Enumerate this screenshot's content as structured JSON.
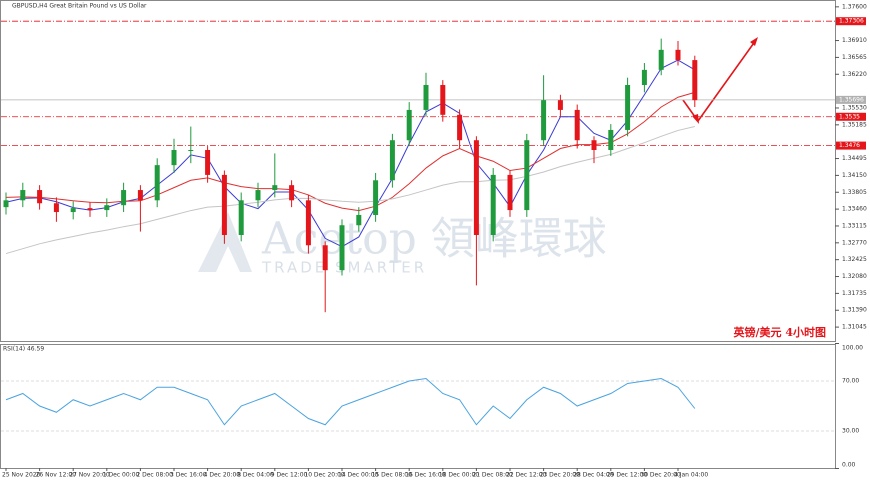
{
  "chart_data": [
    {
      "type": "candlestick",
      "title": "GBPUSD,H4  Great Britain Pound vs US Dollar",
      "annotations": [
        "英镑/美元  4小时图",
        "Acetop 領峰環球",
        "TRADE SMARTER"
      ],
      "categories": [
        "25 Nov 2020",
        null,
        "26 Nov 12:00",
        null,
        "27 Nov 20:00",
        null,
        "1 Dec 00:00",
        null,
        "2 Dec 08:00",
        null,
        "3 Dec 16:00",
        null,
        "4 Dec 20:00",
        null,
        "8 Dec 04:00",
        null,
        "9 Dec 12:00",
        null,
        "10 Dec 20:00",
        null,
        "14 Dec 00:00",
        null,
        "15 Dec 08:00",
        null,
        "16 Dec 16:00",
        null,
        "18 Dec 00:00",
        null,
        "21 Dec 08:00",
        null,
        "22 Dec 12:00",
        null,
        "23 Dec 20:00",
        null,
        "28 Dec 04:00",
        null,
        "29 Dec 12:00",
        null,
        "30 Dec 20:00",
        null,
        "4 Jan 04:00",
        null
      ],
      "open": [
        1.335,
        1.3364,
        1.3385,
        1.3358,
        1.334,
        1.3348,
        1.3344,
        1.3354,
        1.3385,
        1.3364,
        1.3436,
        1.3467,
        1.3467,
        1.3416,
        1.3293,
        1.3364,
        1.3385,
        1.3395,
        1.3364,
        1.3272,
        1.3221,
        1.3313,
        1.3334,
        1.3405,
        1.3487,
        1.3549,
        1.36,
        1.3539,
        1.3487,
        1.3293,
        1.3416,
        1.3344,
        1.3487,
        1.3569,
        1.3549,
        1.3487,
        1.3467,
        1.3508,
        1.36,
        1.3631,
        1.3672,
        1.3651
      ],
      "high": [
        1.338,
        1.34,
        1.3395,
        1.337,
        1.3362,
        1.336,
        1.3368,
        1.34,
        1.3395,
        1.345,
        1.349,
        1.3515,
        1.3475,
        1.3425,
        1.338,
        1.34,
        1.346,
        1.3405,
        1.3375,
        1.328,
        1.3325,
        1.335,
        1.342,
        1.35,
        1.3565,
        1.3625,
        1.361,
        1.355,
        1.3495,
        1.343,
        1.3425,
        1.35,
        1.362,
        1.358,
        1.356,
        1.3495,
        1.352,
        1.3615,
        1.3645,
        1.3695,
        1.369,
        1.366
      ],
      "low": [
        1.3335,
        1.335,
        1.3345,
        1.332,
        1.3325,
        1.333,
        1.333,
        1.334,
        1.33,
        1.335,
        1.342,
        1.344,
        1.34,
        1.3275,
        1.328,
        1.335,
        1.337,
        1.335,
        1.3255,
        1.3135,
        1.321,
        1.33,
        1.332,
        1.339,
        1.3475,
        1.3535,
        1.3525,
        1.347,
        1.319,
        1.328,
        1.333,
        1.333,
        1.3475,
        1.3535,
        1.347,
        1.344,
        1.3455,
        1.3495,
        1.3585,
        1.362,
        1.364,
        1.3555
      ],
      "close": [
        1.3364,
        1.3385,
        1.3358,
        1.334,
        1.3348,
        1.3344,
        1.3354,
        1.3385,
        1.3364,
        1.3436,
        1.3467,
        1.3467,
        1.3416,
        1.3293,
        1.3364,
        1.3385,
        1.3395,
        1.3364,
        1.3272,
        1.3221,
        1.3313,
        1.3334,
        1.3405,
        1.3487,
        1.3549,
        1.36,
        1.3539,
        1.3487,
        1.3293,
        1.3416,
        1.3344,
        1.3487,
        1.3569,
        1.3549,
        1.3487,
        1.3467,
        1.3508,
        1.36,
        1.3631,
        1.3672,
        1.3651,
        1.3569
      ],
      "up_color": "#1f9a3c",
      "down_color": "#e4161b",
      "lines": [
        {
          "color": "#3b3bd6",
          "values": [
            1.336,
            1.3368,
            1.3369,
            1.3361,
            1.3349,
            1.3344,
            1.3349,
            1.3361,
            1.3368,
            1.3395,
            1.3422,
            1.3457,
            1.345,
            1.3392,
            1.3358,
            1.3347,
            1.3381,
            1.3381,
            1.3344,
            1.3286,
            1.3269,
            1.3289,
            1.3351,
            1.3409,
            1.348,
            1.3545,
            1.3563,
            1.3542,
            1.344,
            1.3399,
            1.3351,
            1.3416,
            1.3467,
            1.3535,
            1.3535,
            1.3501,
            1.3487,
            1.3527,
            1.358,
            1.3634,
            1.3651,
            1.3631
          ]
        },
        {
          "color": "#e03030",
          "values": [
            1.337,
            1.3371,
            1.337,
            1.3367,
            1.3363,
            1.336,
            1.3359,
            1.3362,
            1.3363,
            1.3375,
            1.339,
            1.3405,
            1.341,
            1.34,
            1.3392,
            1.3388,
            1.3388,
            1.3386,
            1.3375,
            1.3358,
            1.3348,
            1.3343,
            1.3352,
            1.337,
            1.3398,
            1.343,
            1.3455,
            1.347,
            1.3455,
            1.3444,
            1.3425,
            1.343,
            1.345,
            1.347,
            1.3478,
            1.3478,
            1.3482,
            1.35,
            1.3525,
            1.3555,
            1.3575,
            1.3585
          ]
        },
        {
          "color": "#c4c4c4",
          "values": [
            1.3255,
            1.3265,
            1.3275,
            1.3283,
            1.329,
            1.3297,
            1.3303,
            1.331,
            1.3316,
            1.3325,
            1.3334,
            1.3343,
            1.335,
            1.3352,
            1.3356,
            1.336,
            1.3365,
            1.3368,
            1.3368,
            1.3365,
            1.3362,
            1.336,
            1.3362,
            1.3367,
            1.3375,
            1.3385,
            1.3395,
            1.3402,
            1.3402,
            1.3405,
            1.3406,
            1.3413,
            1.3422,
            1.3433,
            1.3442,
            1.345,
            1.3458,
            1.347,
            1.3482,
            1.3495,
            1.3507,
            1.3515
          ]
        }
      ],
      "levels": [
        {
          "value": 1.37306,
          "color": "#e4161b"
        },
        {
          "value": 1.35696,
          "color": "#b0b0b0"
        },
        {
          "value": 1.3535,
          "color": "#e4161b"
        },
        {
          "value": 1.3476,
          "color": "#e4161b"
        }
      ],
      "ylim": [
        1.3074,
        1.3774
      ],
      "yticks": [
        {
          "value": 1.376,
          "label": "1.37600"
        },
        {
          "value": 1.3691,
          "label": "1.36910"
        },
        {
          "value": 1.36565,
          "label": "1.36565"
        },
        {
          "value": 1.3622,
          "label": "1.36220"
        },
        {
          "value": 1.3553,
          "label": "1.35530"
        },
        {
          "value": 1.35185,
          "label": "1.35185"
        },
        {
          "value": 1.34495,
          "label": "1.34495"
        },
        {
          "value": 1.3415,
          "label": "1.34150"
        },
        {
          "value": 1.33805,
          "label": "1.33805"
        },
        {
          "value": 1.3346,
          "label": "1.33460"
        },
        {
          "value": 1.33115,
          "label": "1.33115"
        },
        {
          "value": 1.3277,
          "label": "1.32770"
        },
        {
          "value": 1.32425,
          "label": "1.32425"
        },
        {
          "value": 1.3208,
          "label": "1.32080"
        },
        {
          "value": 1.31735,
          "label": "1.31735"
        },
        {
          "value": 1.3139,
          "label": "1.31390"
        },
        {
          "value": 1.31045,
          "label": "1.31045"
        }
      ]
    },
    {
      "type": "line",
      "title": "RSI(14) 46.59",
      "color": "#4aa3e0",
      "values": [
        55,
        60,
        50,
        45,
        55,
        50,
        55,
        60,
        55,
        65,
        65,
        60,
        55,
        35,
        50,
        55,
        60,
        50,
        40,
        35,
        50,
        55,
        60,
        65,
        70,
        72,
        60,
        55,
        35,
        50,
        40,
        55,
        65,
        60,
        50,
        55,
        60,
        68,
        70,
        72,
        65,
        48
      ],
      "ylim": [
        0,
        100
      ],
      "yticks": [
        {
          "value": 100,
          "label": "100.00"
        },
        {
          "value": 70,
          "label": "70.00"
        },
        {
          "value": 30,
          "label": "30.00"
        },
        {
          "value": 0,
          "label": "0.00"
        }
      ]
    }
  ]
}
